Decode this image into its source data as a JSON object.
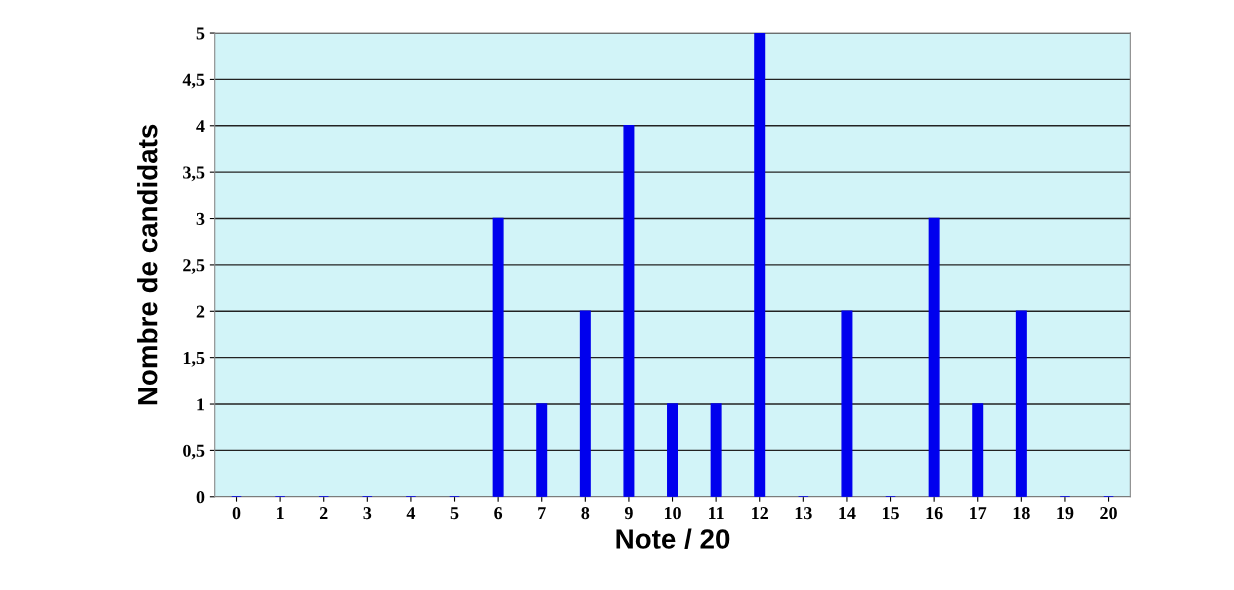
{
  "chart_data": {
    "type": "bar",
    "xlabel": "Note / 20",
    "ylabel": "Nombre de candidats",
    "categories": [
      "0",
      "1",
      "2",
      "3",
      "4",
      "5",
      "6",
      "7",
      "8",
      "9",
      "10",
      "11",
      "12",
      "13",
      "14",
      "15",
      "16",
      "17",
      "18",
      "19",
      "20"
    ],
    "values": [
      0,
      0,
      0,
      0,
      0,
      0,
      3,
      1,
      2,
      4,
      1,
      1,
      5,
      0,
      2,
      0,
      3,
      1,
      2,
      0,
      0
    ],
    "color": "#0000ee",
    "ylim": [
      0,
      5
    ],
    "yticks": [
      0,
      {
        "value": 0.5,
        "label": "0,5"
      },
      1,
      {
        "value": 1.5,
        "label": "1,5"
      },
      2,
      {
        "value": 2.5,
        "label": "2,5"
      },
      3,
      {
        "value": 3.5,
        "label": "3,5"
      },
      4,
      {
        "value": 4.5,
        "label": "4,5"
      },
      5
    ],
    "grid": "y"
  }
}
